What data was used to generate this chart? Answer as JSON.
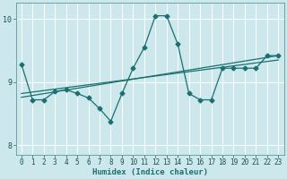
{
  "xlabel": "Humidex (Indice chaleur)",
  "bg_color": "#cce8ec",
  "grid_color": "#b0d8dc",
  "line_color": "#1a7070",
  "xlim": [
    -0.5,
    23.5
  ],
  "ylim": [
    7.85,
    10.25
  ],
  "yticks": [
    8,
    9,
    10
  ],
  "xticks": [
    0,
    1,
    2,
    3,
    4,
    5,
    6,
    7,
    8,
    9,
    10,
    11,
    12,
    13,
    14,
    15,
    16,
    17,
    18,
    19,
    20,
    21,
    22,
    23
  ],
  "series1_x": [
    0,
    1,
    2,
    3,
    4,
    5,
    6,
    7,
    8,
    9,
    10,
    11,
    12,
    13,
    14,
    15,
    16,
    17,
    18,
    19,
    20,
    21,
    22,
    23
  ],
  "series1_y": [
    9.28,
    8.72,
    8.72,
    8.85,
    8.88,
    8.82,
    8.75,
    8.58,
    8.38,
    8.82,
    9.22,
    9.55,
    10.05,
    10.05,
    9.6,
    8.82,
    8.72,
    8.72,
    9.22,
    9.22,
    9.22,
    9.22,
    9.42,
    9.42
  ],
  "series2_x": [
    0,
    23
  ],
  "series2_y": [
    8.82,
    9.35
  ],
  "series3_x": [
    0,
    23
  ],
  "series3_y": [
    8.76,
    9.42
  ],
  "marker": "D",
  "markersize": 2.5,
  "linewidth": 0.9,
  "tick_fontsize": 5.5,
  "xlabel_fontsize": 6.5
}
